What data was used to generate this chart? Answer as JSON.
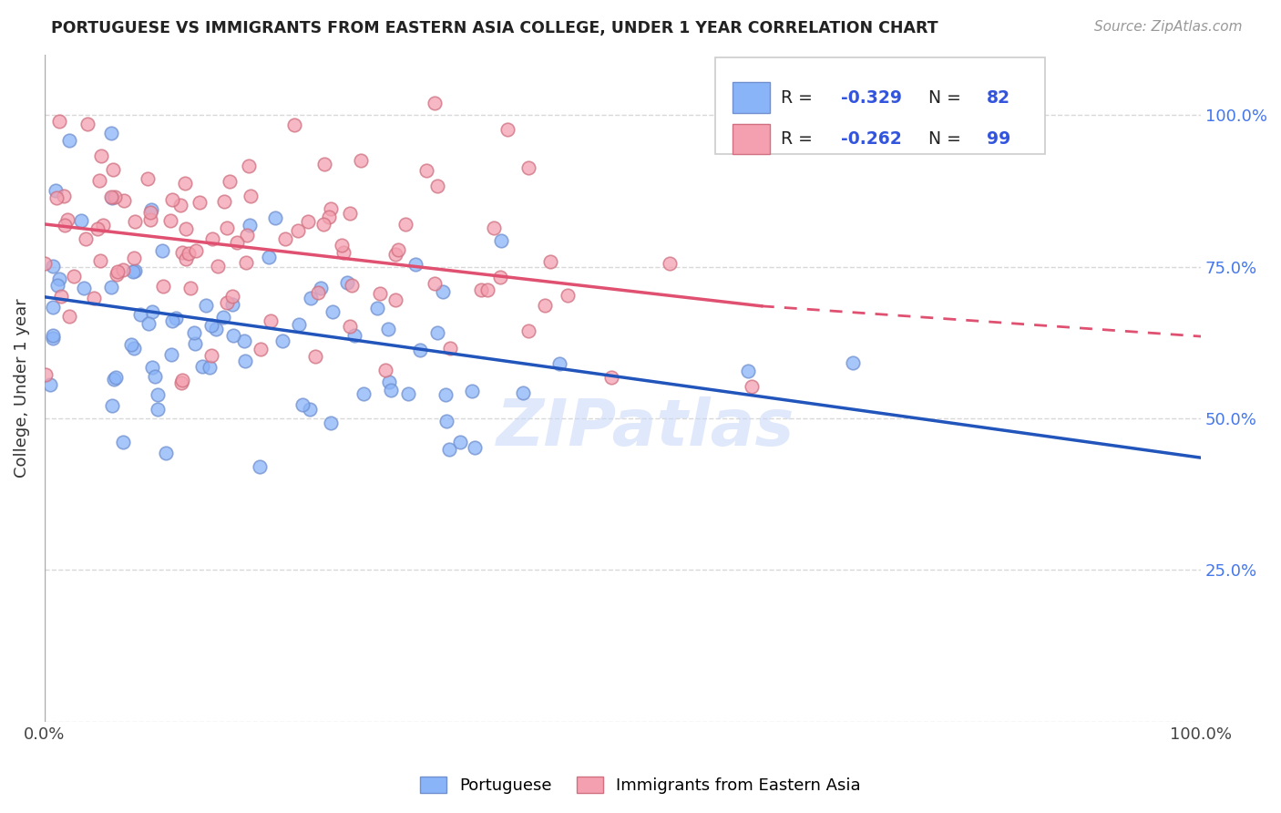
{
  "title": "PORTUGUESE VS IMMIGRANTS FROM EASTERN ASIA COLLEGE, UNDER 1 YEAR CORRELATION CHART",
  "source": "Source: ZipAtlas.com",
  "ylabel": "College, Under 1 year",
  "right_yticks": [
    "100.0%",
    "75.0%",
    "50.0%",
    "25.0%"
  ],
  "right_ytick_vals": [
    1.0,
    0.75,
    0.5,
    0.25
  ],
  "watermark": "ZIPatlas",
  "legend_label1": "Portuguese",
  "legend_label2": "Immigrants from Eastern Asia",
  "R1": -0.329,
  "N1": 82,
  "R2": -0.262,
  "N2": 99,
  "color_blue": "#8ab4f8",
  "color_blue_edge": "#7090d0",
  "color_pink": "#f4a0b0",
  "color_pink_edge": "#d07080",
  "color_blue_line": "#2255bb",
  "color_pink_line": "#e05070",
  "xlim": [
    0.0,
    1.0
  ],
  "ylim": [
    0.0,
    1.1
  ],
  "blue_line_y_start": 0.7,
  "blue_line_y_end": 0.435,
  "pink_line_solid_end_x": 0.62,
  "pink_line_y_start": 0.82,
  "pink_line_y_at_solid_end": 0.685,
  "pink_line_y_end": 0.635,
  "background_color": "#ffffff",
  "grid_color": "#d8d8d8"
}
